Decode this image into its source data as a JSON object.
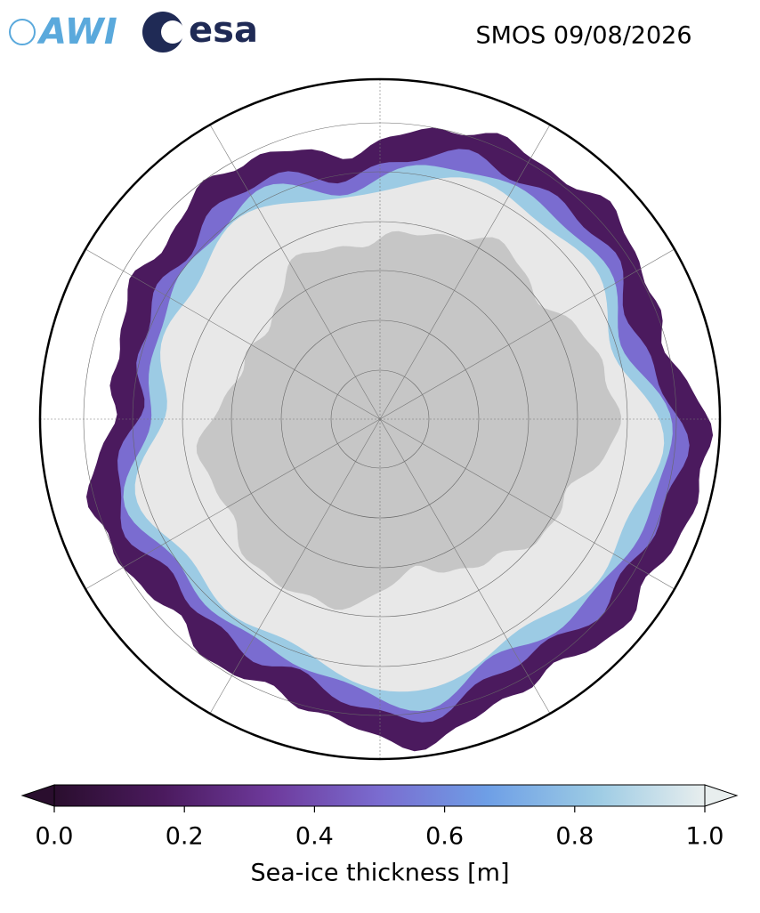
{
  "header": {
    "logos": [
      "AWI",
      "esa"
    ],
    "title": "SMOS 09/08/2026"
  },
  "colorbar": {
    "label": "Sea-ice thickness [m]",
    "xlim": [
      0,
      1
    ],
    "xticks": [
      {
        "value": 0,
        "label": "0.0"
      },
      {
        "value": 0.2,
        "label": "0.2"
      },
      {
        "value": 0.4,
        "label": "0.4"
      },
      {
        "value": 0.6,
        "label": "0.6"
      },
      {
        "value": 0.8,
        "label": "0.8"
      },
      {
        "value": 1,
        "label": "1.0"
      }
    ],
    "colors": [
      "#2a0e2e",
      "#4b1a5e",
      "#6e3a9c",
      "#7a6cd0",
      "#6e9fe6",
      "#9ccbe4",
      "#e8eeee"
    ]
  }
}
